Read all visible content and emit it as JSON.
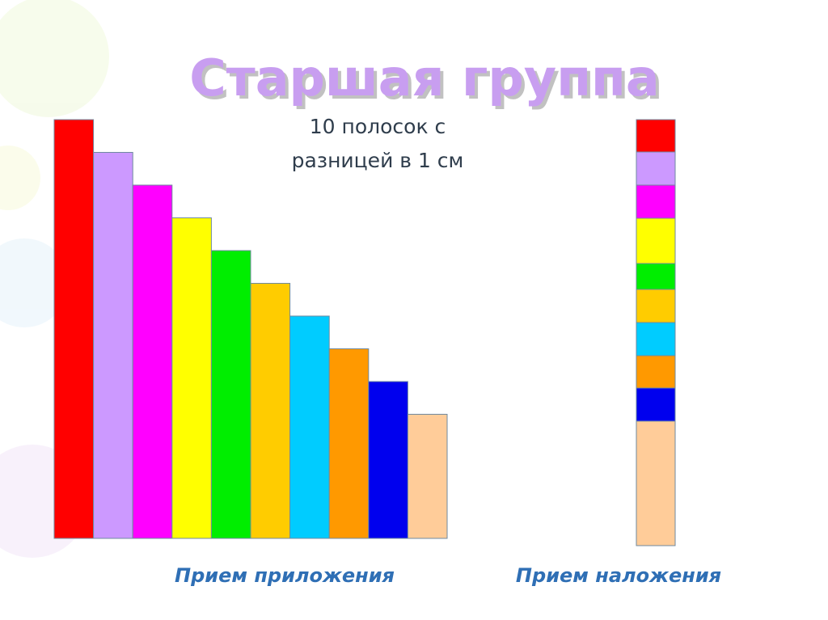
{
  "header": {
    "title": "Старшая группа",
    "subtitle_lines": [
      "10 полосок с",
      "разницей  в 1 см"
    ]
  },
  "captions": {
    "left": "Прием приложения",
    "right": "Прием наложения"
  }
}
